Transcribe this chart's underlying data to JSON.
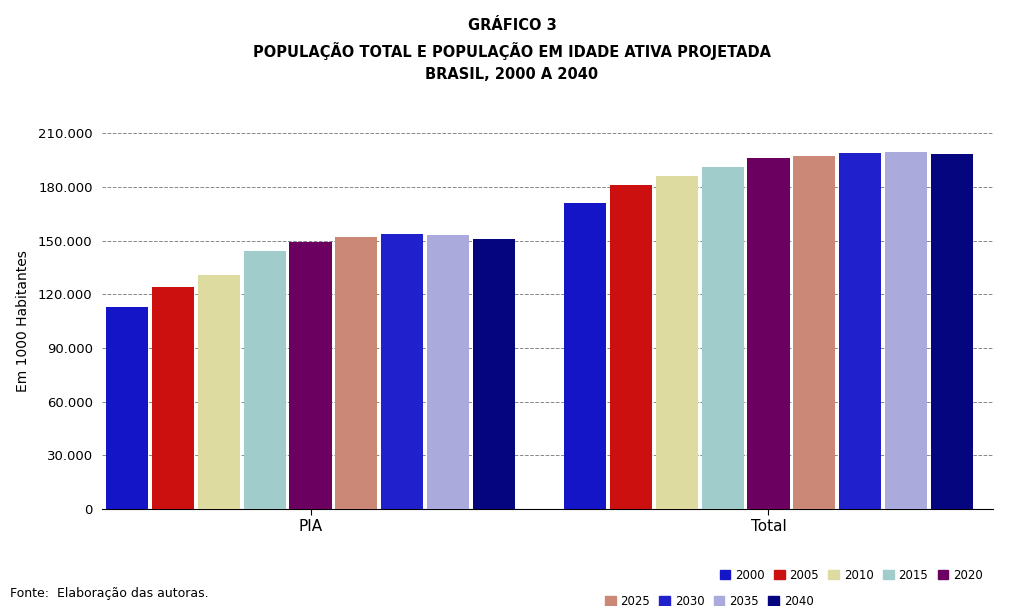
{
  "title_line1": "GRÁFICO 3",
  "title_line2": "POPULAÇÃO TOTAL E POPULAÇÃO EM IDADE ATIVA PROJETADA",
  "title_line3": "BRASIL, 2000 A 2040",
  "ylabel": "Em 1000 Habitantes",
  "xlabel_groups": [
    "PIA",
    "Total"
  ],
  "years": [
    "2000",
    "2005",
    "2010",
    "2015",
    "2020",
    "2025",
    "2030",
    "2035",
    "2040"
  ],
  "colors": {
    "2000": "#1515C8",
    "2005": "#CC1010",
    "2010": "#DDDBA0",
    "2015": "#A0CCCC",
    "2020": "#6B0060",
    "2025": "#CC8877",
    "2030": "#2020CC",
    "2035": "#AAAADD",
    "2040": "#050580"
  },
  "pia_values": [
    113000,
    124000,
    131000,
    144000,
    149000,
    152000,
    154000,
    153000,
    151000
  ],
  "total_values": [
    171000,
    181000,
    186000,
    191000,
    196000,
    197500,
    199000,
    199500,
    198500
  ],
  "ylim": [
    0,
    210000
  ],
  "yticks": [
    0,
    30000,
    60000,
    90000,
    120000,
    150000,
    180000,
    210000
  ],
  "ytick_labels": [
    "0",
    "30.000",
    "60.000",
    "90.000",
    "120.000",
    "150.000",
    "180.000",
    "210.000"
  ],
  "footnote": "Fonte:  Elaboração das autoras.",
  "background_color": "#FFFFFF",
  "grid_color": "#888888"
}
